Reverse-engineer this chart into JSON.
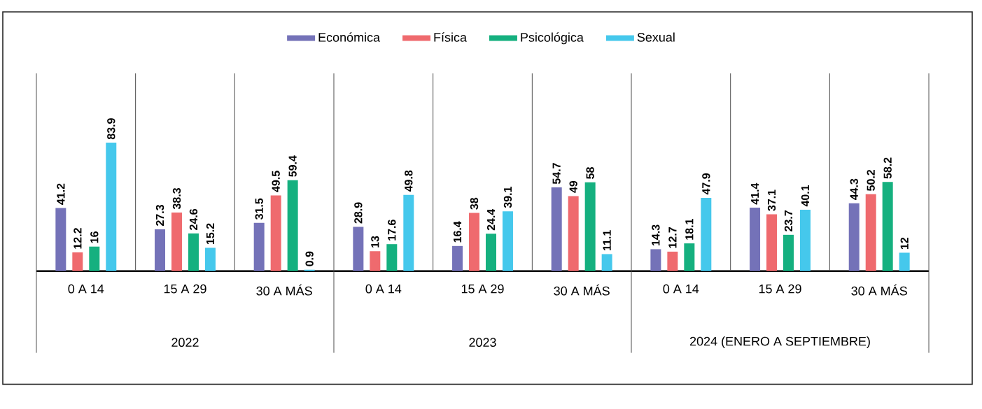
{
  "chart_data": {
    "type": "bar",
    "categories": [
      "0 A 14",
      "15 A 29",
      "30 A MÁS",
      "0 A 14",
      "15 A 29",
      "30 A MÁS",
      "0 A 14",
      "15 A 29",
      "30 A MÁS"
    ],
    "series": [
      {
        "name": "Económica",
        "color": "#7472b8",
        "values": [
          41.2,
          27.3,
          31.5,
          28.9,
          16.4,
          54.7,
          14.3,
          41.4,
          44.3
        ]
      },
      {
        "name": "Física",
        "color": "#ef6a6e",
        "values": [
          12.2,
          38.3,
          49.5,
          13,
          38,
          49,
          12.7,
          37.1,
          50.2
        ]
      },
      {
        "name": "Psicológica",
        "color": "#15b07f",
        "values": [
          16,
          24.6,
          59.4,
          17.6,
          24.4,
          58,
          18.1,
          23.7,
          58.2
        ]
      },
      {
        "name": "Sexual",
        "color": "#45c8ec",
        "values": [
          83.9,
          15.2,
          0.9,
          49.8,
          39.1,
          11.1,
          47.9,
          40.1,
          12
        ]
      }
    ],
    "annotations": [
      "2022",
      "2023",
      "2024 (ENERO A SEPTIEMBRE)"
    ],
    "data_labels": true,
    "legend": "top"
  }
}
